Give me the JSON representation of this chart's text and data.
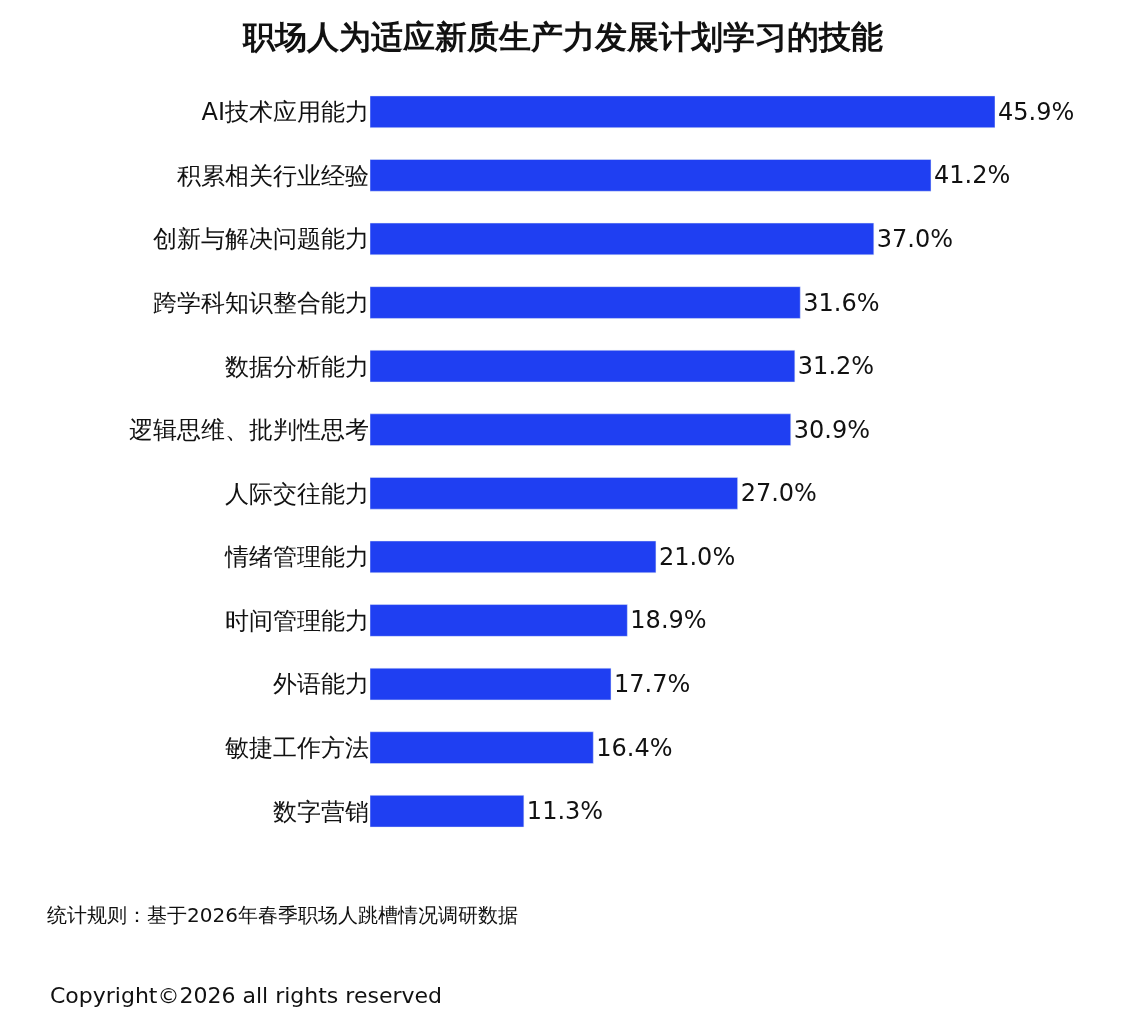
{
  "chart_data": {
    "type": "bar",
    "orientation": "horizontal",
    "title": "职场人为适应新质生产力发展计划学习的技能",
    "categories": [
      "AI技术应用能力",
      "积累相关行业经验",
      "创新与解决问题能力",
      "跨学科知识整合能力",
      "数据分析能力",
      "逻辑思维、批判性思考",
      "人际交往能力",
      "情绪管理能力",
      "时间管理能力",
      "外语能力",
      "敏捷工作方法",
      "数字营销"
    ],
    "values": [
      45.9,
      41.2,
      37.0,
      31.6,
      31.2,
      30.9,
      27.0,
      21.0,
      18.9,
      17.7,
      16.4,
      11.3
    ],
    "value_labels": [
      "45.9%",
      "41.2%",
      "37.0%",
      "31.6%",
      "31.2%",
      "30.9%",
      "27.0%",
      "21.0%",
      "18.9%",
      "17.7%",
      "16.4%",
      "11.3%"
    ],
    "color": "#1f3ff2",
    "annotations": [
      "统计规则：基于2026年春季职场人跳槽情况调研数据",
      "Copyright©2026 all rights reserved"
    ],
    "legend": false
  }
}
